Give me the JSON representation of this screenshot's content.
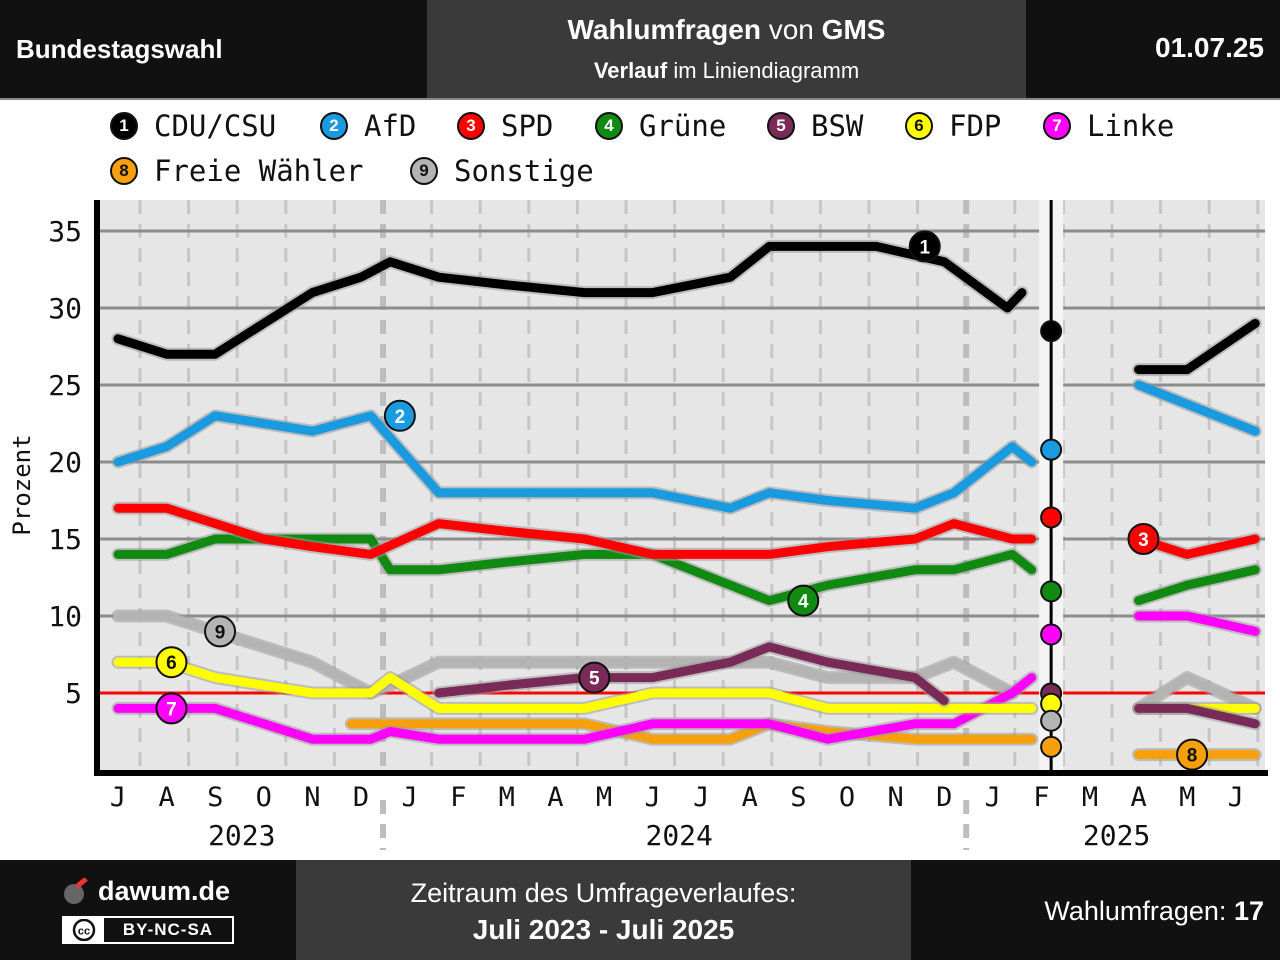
{
  "header": {
    "left_title": "Bundestagswahl",
    "mid_bold1": "Wahlumfragen",
    "mid_mid": "von",
    "mid_bold2": "GMS",
    "mid_line2_bold": "Verlauf",
    "mid_line2_rest": "im Liniendiagramm",
    "date": "01.07.25"
  },
  "footer": {
    "logo_text": "dawum.de",
    "license_cc": "cc",
    "license_text": "BY-NC-SA",
    "period_label": "Zeitraum des Umfrageverlaufes:",
    "period_value": "Juli 2023 - Juli 2025",
    "count_label": "Wahlumfragen:",
    "count_value": "17"
  },
  "chart_data": {
    "type": "line",
    "ylabel": "Prozent",
    "ylim": [
      0,
      37
    ],
    "yticks": [
      5,
      10,
      15,
      20,
      25,
      30,
      35
    ],
    "threshold": 5,
    "month_labels": [
      "J",
      "A",
      "S",
      "O",
      "N",
      "D",
      "J",
      "F",
      "M",
      "A",
      "M",
      "J",
      "J",
      "A",
      "S",
      "O",
      "N",
      "D",
      "J",
      "F",
      "M",
      "A",
      "M",
      "J"
    ],
    "year_labels": [
      {
        "label": "2023",
        "month_index": 3
      },
      {
        "label": "2024",
        "month_index": 12
      },
      {
        "label": "2025",
        "month_index": 21
      }
    ],
    "election_month": 19.2,
    "series": [
      {
        "num": "1",
        "name": "CDU/CSU",
        "color": "#000000",
        "text_color": "#ffffff",
        "marker": [
          16.6,
          34
        ],
        "result": 28.5,
        "before": [
          [
            0,
            28
          ],
          [
            1,
            27
          ],
          [
            2,
            27
          ],
          [
            3,
            29
          ],
          [
            4,
            31
          ],
          [
            5,
            32
          ],
          [
            5.6,
            33
          ],
          [
            6.6,
            32
          ],
          [
            8,
            31.5
          ],
          [
            9.6,
            31
          ],
          [
            11,
            31
          ],
          [
            12.6,
            32
          ],
          [
            13.4,
            34
          ],
          [
            14.6,
            34
          ],
          [
            15.6,
            34
          ],
          [
            17,
            33
          ],
          [
            18.3,
            30
          ],
          [
            18.6,
            31
          ]
        ],
        "after": [
          [
            21,
            26
          ],
          [
            22,
            26
          ],
          [
            23.4,
            29
          ]
        ]
      },
      {
        "num": "2",
        "name": "AfD",
        "color": "#1a9be0",
        "text_color": "#ffffff",
        "marker": [
          5.8,
          23
        ],
        "result": 20.8,
        "before": [
          [
            0,
            20
          ],
          [
            1,
            21
          ],
          [
            2,
            23
          ],
          [
            3,
            22.5
          ],
          [
            4,
            22
          ],
          [
            5.2,
            23
          ],
          [
            6.6,
            18
          ],
          [
            8,
            18
          ],
          [
            9.6,
            18
          ],
          [
            11,
            18
          ],
          [
            12.6,
            17
          ],
          [
            13.4,
            18
          ],
          [
            14.6,
            17.5
          ],
          [
            16.4,
            17
          ],
          [
            17.2,
            18
          ],
          [
            18.4,
            21
          ],
          [
            18.8,
            20
          ]
        ],
        "after": [
          [
            21,
            25
          ],
          [
            22.6,
            23
          ],
          [
            23.4,
            22
          ]
        ]
      },
      {
        "num": "3",
        "name": "SPD",
        "color": "#ff0000",
        "text_color": "#ffffff",
        "marker": [
          21.1,
          15
        ],
        "result": 16.4,
        "before": [
          [
            0,
            17
          ],
          [
            1,
            17
          ],
          [
            2,
            16
          ],
          [
            3,
            15
          ],
          [
            4,
            14.5
          ],
          [
            5.2,
            14
          ],
          [
            6.6,
            16
          ],
          [
            8,
            15.5
          ],
          [
            9.6,
            15
          ],
          [
            11,
            14
          ],
          [
            12.6,
            14
          ],
          [
            13.4,
            14
          ],
          [
            14.6,
            14.5
          ],
          [
            16.4,
            15
          ],
          [
            17.2,
            16
          ],
          [
            18.4,
            15
          ],
          [
            18.8,
            15
          ]
        ],
        "after": [
          [
            21,
            15
          ],
          [
            22,
            14
          ],
          [
            23.4,
            15
          ]
        ]
      },
      {
        "num": "4",
        "name": "Grüne",
        "color": "#118a11",
        "text_color": "#ffffff",
        "marker": [
          14.1,
          11
        ],
        "result": 11.6,
        "before": [
          [
            0,
            14
          ],
          [
            1,
            14
          ],
          [
            2,
            15
          ],
          [
            3,
            15
          ],
          [
            4,
            15
          ],
          [
            5.2,
            15
          ],
          [
            5.6,
            13
          ],
          [
            6.6,
            13
          ],
          [
            8,
            13.5
          ],
          [
            9.6,
            14
          ],
          [
            11,
            14
          ],
          [
            12.6,
            12
          ],
          [
            13.4,
            11
          ],
          [
            14.6,
            12
          ],
          [
            16.4,
            13
          ],
          [
            17.2,
            13
          ],
          [
            18.4,
            14
          ],
          [
            18.8,
            13
          ]
        ],
        "after": [
          [
            21,
            11
          ],
          [
            22,
            12
          ],
          [
            23.4,
            13
          ]
        ]
      },
      {
        "num": "5",
        "name": "BSW",
        "color": "#7a2a56",
        "text_color": "#ffffff",
        "marker": [
          9.8,
          6
        ],
        "result": 4.97,
        "before": [
          [
            6.6,
            5
          ],
          [
            8,
            5.5
          ],
          [
            9.6,
            6
          ],
          [
            11,
            6
          ],
          [
            12.6,
            7
          ],
          [
            13.4,
            8
          ],
          [
            14.6,
            7
          ],
          [
            16.4,
            6
          ],
          [
            17,
            4.5
          ]
        ],
        "after": [
          [
            21,
            4
          ],
          [
            22,
            4
          ],
          [
            23.4,
            3
          ]
        ]
      },
      {
        "num": "6",
        "name": "FDP",
        "color": "#ffff00",
        "text_color": "#111111",
        "marker": [
          1.1,
          7
        ],
        "result": 4.3,
        "before": [
          [
            0,
            7
          ],
          [
            1,
            7
          ],
          [
            2,
            6
          ],
          [
            3,
            5.5
          ],
          [
            4,
            5
          ],
          [
            5.2,
            5
          ],
          [
            5.6,
            6
          ],
          [
            6.6,
            4
          ],
          [
            8,
            4
          ],
          [
            9.6,
            4
          ],
          [
            11,
            5
          ],
          [
            12.6,
            5
          ],
          [
            13.4,
            5
          ],
          [
            14.6,
            4
          ],
          [
            16.4,
            4
          ],
          [
            17.2,
            4
          ],
          [
            18.4,
            4
          ],
          [
            18.8,
            4
          ]
        ],
        "after": [
          [
            21,
            4
          ],
          [
            22,
            4
          ],
          [
            23.4,
            4
          ]
        ]
      },
      {
        "num": "7",
        "name": "Linke",
        "color": "#ff00ff",
        "text_color": "#ffffff",
        "marker": [
          1.1,
          4
        ],
        "result": 8.8,
        "before": [
          [
            0,
            4
          ],
          [
            1,
            4
          ],
          [
            2,
            4
          ],
          [
            3,
            3
          ],
          [
            4,
            2
          ],
          [
            5.2,
            2
          ],
          [
            5.6,
            2.5
          ],
          [
            6.6,
            2
          ],
          [
            8,
            2
          ],
          [
            9.6,
            2
          ],
          [
            11,
            3
          ],
          [
            12.6,
            3
          ],
          [
            13.4,
            3
          ],
          [
            14.6,
            2
          ],
          [
            16.4,
            3
          ],
          [
            17.2,
            3
          ],
          [
            18.4,
            5
          ],
          [
            18.8,
            6
          ]
        ],
        "after": [
          [
            21,
            10
          ],
          [
            22,
            10
          ],
          [
            23.4,
            9
          ]
        ]
      },
      {
        "num": "8",
        "name": "Freie Wähler",
        "color": "#f7a00e",
        "text_color": "#111111",
        "marker": [
          22.1,
          1
        ],
        "result": 1.5,
        "before": [
          [
            4.8,
            3
          ],
          [
            6.6,
            3
          ],
          [
            8,
            3
          ],
          [
            9.6,
            3
          ],
          [
            11,
            2
          ],
          [
            12.6,
            2
          ],
          [
            13.4,
            3
          ],
          [
            14.6,
            2.5
          ],
          [
            16.4,
            2
          ],
          [
            17.2,
            2
          ],
          [
            18.4,
            2
          ],
          [
            18.8,
            2
          ]
        ],
        "after": [
          [
            21,
            1
          ],
          [
            22,
            1
          ],
          [
            23.4,
            1
          ]
        ]
      },
      {
        "num": "9",
        "name": "Sonstige",
        "color": "#b4b4b4",
        "text_color": "#111111",
        "marker": [
          2.1,
          9
        ],
        "result": 3.2,
        "before": [
          [
            0,
            10
          ],
          [
            1,
            10
          ],
          [
            2,
            9
          ],
          [
            3,
            8
          ],
          [
            4,
            7
          ],
          [
            5.2,
            5
          ],
          [
            5.6,
            5.5
          ],
          [
            6.6,
            7
          ],
          [
            8,
            7
          ],
          [
            9.6,
            7
          ],
          [
            11,
            7
          ],
          [
            12.6,
            7
          ],
          [
            13.4,
            7
          ],
          [
            14.6,
            6
          ],
          [
            16.4,
            6
          ],
          [
            17.2,
            7
          ],
          [
            18.4,
            5
          ]
        ],
        "after": [
          [
            21,
            4
          ],
          [
            22,
            6
          ],
          [
            23.4,
            4
          ]
        ]
      }
    ]
  }
}
